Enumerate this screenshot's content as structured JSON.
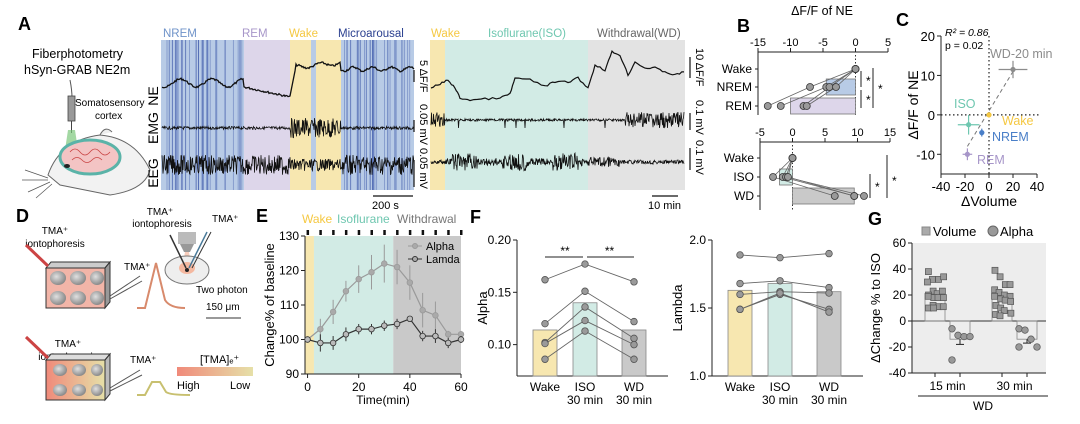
{
  "figure": {
    "panel_labels": [
      "A",
      "B",
      "C",
      "D",
      "E",
      "F",
      "G"
    ],
    "colors": {
      "nrem": "#6f93c9",
      "nrem_bg": "#b8cbe6",
      "rem": "#a796c9",
      "rem_bg": "#ddd6ea",
      "wake": "#f5c842",
      "wake_bg": "#f7e7b0",
      "micro": "#2a3f8f",
      "iso": "#6fc7b0",
      "iso_bg": "#d2ebe5",
      "wd": "#777777",
      "wd_bg": "#e3e3e3",
      "point": "#8c8c8c"
    }
  },
  "panel_a": {
    "setup_title_1": "Fiberphotometry",
    "setup_title_2": "hSyn-GRAB NE2m",
    "region_1": "Somatosensory",
    "region_2": "cortex",
    "trace_labels": [
      "NE",
      "EMG",
      "EEG"
    ],
    "left_states": [
      "NREM",
      "REM",
      "Wake",
      "Microarousal"
    ],
    "right_states": [
      "Wake",
      "Isoflurane(ISO)",
      "Withdrawal(WD)"
    ],
    "left_scales": [
      "5 ΔF/F",
      "0.05 mV",
      "0.05 mV"
    ],
    "left_time_scale": "200 s",
    "right_scales": [
      "10 ΔF/F",
      "0.1 mV",
      "0.1 mV"
    ],
    "right_time_scale": "10 min"
  },
  "chart_data": [
    {
      "id": "B-top",
      "type": "bar",
      "orientation": "horizontal",
      "title": "ΔF/F of NE",
      "categories": [
        "Wake",
        "NREM",
        "REM"
      ],
      "xlim": [
        -15,
        5
      ],
      "xticks": [
        -15,
        -10,
        -5,
        0,
        5
      ],
      "values": [
        0,
        -4.5,
        -10
      ],
      "points": [
        [
          0,
          0,
          0,
          0
        ],
        [
          -7,
          -4.5,
          -4,
          -3
        ],
        [
          -13.5,
          -11.5,
          -8,
          -7.5
        ]
      ],
      "significance": [
        "*",
        "*",
        "*"
      ]
    },
    {
      "id": "B-bottom",
      "type": "bar",
      "orientation": "horizontal",
      "categories": [
        "Wake",
        "ISO",
        "WD"
      ],
      "xlim": [
        -5,
        15
      ],
      "xticks": [
        -5,
        0,
        5,
        10,
        15
      ],
      "values": [
        0,
        -2,
        9.5
      ],
      "points": [
        [
          0,
          0,
          0,
          0
        ],
        [
          -3,
          -1.5,
          -1,
          -0.7
        ],
        [
          6.5,
          9.5,
          11,
          9.5
        ]
      ],
      "significance": [
        "*",
        "*"
      ]
    },
    {
      "id": "C",
      "type": "scatter",
      "xlabel": "ΔVolume",
      "ylabel": "ΔF/F of NE",
      "xlim": [
        -40,
        40
      ],
      "ylim": [
        -15,
        20
      ],
      "xticks": [
        -40,
        -20,
        0,
        20,
        40
      ],
      "yticks": [
        -10,
        0,
        10,
        20
      ],
      "annotation_r2": "R² = 0.86",
      "annotation_p": "p = 0.02",
      "points": [
        {
          "label": "WD-20 min",
          "x": 20,
          "y": 11.5,
          "xerr": 12,
          "yerr": 2.2
        },
        {
          "label": "ISO",
          "x": -17,
          "y": -2.5,
          "xerr": 9,
          "yerr": 2.5
        },
        {
          "label": "Wake",
          "x": 0,
          "y": 0,
          "xerr": 0,
          "yerr": 0
        },
        {
          "label": "NREM",
          "x": -6,
          "y": -4.5,
          "xerr": 2,
          "yerr": 1
        },
        {
          "label": "REM",
          "x": -18,
          "y": -10,
          "xerr": 4,
          "yerr": 1.5
        }
      ]
    },
    {
      "id": "E",
      "type": "line",
      "xlabel": "Time(min)",
      "ylabel": "Change% of baseline",
      "xlim": [
        -1,
        60
      ],
      "ylim": [
        90,
        130
      ],
      "xticks": [
        0,
        20,
        40,
        60
      ],
      "yticks": [
        90,
        100,
        110,
        120,
        130
      ],
      "phases": [
        "Wake",
        "Isoflurane",
        "Withdrawal"
      ],
      "phase_bounds": [
        [
          -1,
          2.5
        ],
        [
          2.5,
          33.5
        ],
        [
          33.5,
          60
        ]
      ],
      "x": [
        0,
        5,
        10,
        15,
        20,
        25,
        30,
        35,
        40,
        45,
        50,
        55,
        60
      ],
      "series": [
        {
          "name": "Alpha",
          "values": [
            100,
            103,
            108,
            114,
            117.5,
            119.5,
            122,
            121,
            116.5,
            108.5,
            107,
            101.5,
            101.5
          ],
          "err": [
            0,
            3,
            3.5,
            3,
            4,
            5,
            5.5,
            5,
            5,
            5,
            4,
            1,
            1
          ]
        },
        {
          "name": "Lamda",
          "values": [
            100,
            99,
            99,
            101.5,
            103,
            103,
            104,
            104.5,
            106,
            101,
            101,
            99,
            100
          ],
          "err": [
            0,
            2.5,
            2,
            2,
            1.5,
            1.5,
            1.5,
            1.5,
            0,
            1.5,
            2,
            1.5,
            1
          ]
        }
      ]
    },
    {
      "id": "F-alpha",
      "type": "bar",
      "ylabel": "Alpha",
      "categories": [
        "Wake",
        "ISO 30 min",
        "WD 30 min"
      ],
      "ylim": [
        0.07,
        0.2
      ],
      "yticks": [
        0.1,
        0.15,
        0.2
      ],
      "values": [
        0.114,
        0.14,
        0.114
      ],
      "paired_points": [
        [
          0.162,
          0.177,
          0.16
        ],
        [
          0.12,
          0.151,
          0.122
        ],
        [
          0.102,
          0.136,
          0.106
        ],
        [
          0.101,
          0.123,
          0.1
        ],
        [
          0.086,
          0.113,
          0.086
        ]
      ],
      "significance": [
        "**",
        "**"
      ]
    },
    {
      "id": "F-lambda",
      "type": "bar",
      "ylabel": "Lambda",
      "categories": [
        "Wake",
        "ISO 30 min",
        "WD 30 min"
      ],
      "ylim": [
        1.0,
        2.0
      ],
      "yticks": [
        1.0,
        1.5,
        2.0
      ],
      "values": [
        1.63,
        1.68,
        1.62
      ],
      "paired_points": [
        [
          1.89,
          1.87,
          1.9
        ],
        [
          1.68,
          1.7,
          1.65
        ],
        [
          1.6,
          1.62,
          1.61
        ],
        [
          1.49,
          1.6,
          1.49
        ],
        [
          1.49,
          1.61,
          1.47
        ]
      ]
    },
    {
      "id": "G",
      "type": "bar",
      "ylabel": "ΔChange % to ISO",
      "xlabel": "WD",
      "group_labels": [
        "15 min",
        "30 min"
      ],
      "legend": [
        "Volume",
        "Alpha"
      ],
      "ylim": [
        -40,
        60
      ],
      "yticks": [
        -40,
        -20,
        0,
        20,
        40,
        60
      ],
      "series": [
        {
          "name": "Volume",
          "values": [
            21,
            20
          ],
          "points": [
            [
              38,
              32,
              32,
              34,
              30,
              23,
              21,
              23,
              20,
              18,
              18,
              18,
              19,
              12,
              11,
              11,
              10,
              10
            ],
            [
              39,
              34,
              28,
              28,
              24,
              22,
              20,
              19,
              19,
              17,
              16,
              15,
              12,
              10,
              8,
              6,
              5,
              4
            ]
          ]
        },
        {
          "name": "Alpha",
          "values": [
            -14,
            -14
          ],
          "err": [
            4,
            3
          ],
          "points": [
            [
              -6,
              -11,
              -12,
              -12,
              -30
            ],
            [
              -6,
              -7,
              -14,
              -20,
              -20
            ]
          ]
        }
      ]
    }
  ],
  "panel_d": {
    "iontophoresis_1": "TMA⁺",
    "iontophoresis_2": "iontophoresis",
    "tma": "TMA⁺",
    "two_photon": "Two photon",
    "scale": "150 μm",
    "conc_label": "[TMA]ₑ⁺",
    "high": "High",
    "low": "Low"
  }
}
